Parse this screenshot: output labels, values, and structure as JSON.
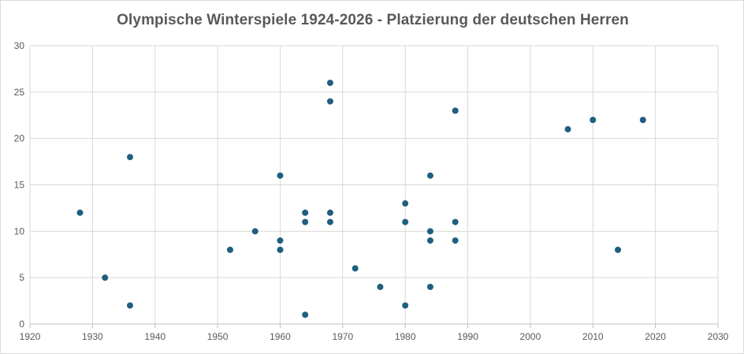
{
  "chart_data": {
    "type": "scatter",
    "title": "Olympische Winterspiele 1924-2026 - Platzierung der deutschen Herren",
    "xlabel": "",
    "ylabel": "",
    "xlim": [
      1920,
      2030
    ],
    "ylim": [
      0,
      30
    ],
    "x_ticks": [
      1920,
      1930,
      1940,
      1950,
      1960,
      1970,
      1980,
      1990,
      2000,
      2010,
      2020,
      2030
    ],
    "y_ticks": [
      0,
      5,
      10,
      15,
      20,
      25,
      30
    ],
    "x_tick_labels": [
      "1920",
      "1930",
      "1940",
      "1950",
      "1960",
      "1970",
      "1980",
      "1990",
      "2000",
      "2010",
      "2020",
      "2030"
    ],
    "y_tick_labels": [
      "0",
      "5",
      "10",
      "15",
      "20",
      "25",
      "30"
    ],
    "grid": true,
    "legend": "none",
    "marker_color": "#1f5f7f",
    "grid_color": "#d9d9d9",
    "axis_color": "#bfbfbf",
    "points": [
      {
        "x": 1928,
        "y": 12
      },
      {
        "x": 1932,
        "y": 5
      },
      {
        "x": 1936,
        "y": 18
      },
      {
        "x": 1936,
        "y": 2
      },
      {
        "x": 1952,
        "y": 8
      },
      {
        "x": 1956,
        "y": 10
      },
      {
        "x": 1960,
        "y": 16
      },
      {
        "x": 1960,
        "y": 9
      },
      {
        "x": 1960,
        "y": 8
      },
      {
        "x": 1964,
        "y": 12
      },
      {
        "x": 1964,
        "y": 11
      },
      {
        "x": 1964,
        "y": 1
      },
      {
        "x": 1968,
        "y": 26
      },
      {
        "x": 1968,
        "y": 24
      },
      {
        "x": 1968,
        "y": 12
      },
      {
        "x": 1968,
        "y": 11
      },
      {
        "x": 1972,
        "y": 6
      },
      {
        "x": 1976,
        "y": 4
      },
      {
        "x": 1980,
        "y": 13
      },
      {
        "x": 1980,
        "y": 11
      },
      {
        "x": 1980,
        "y": 2
      },
      {
        "x": 1984,
        "y": 16
      },
      {
        "x": 1984,
        "y": 10
      },
      {
        "x": 1984,
        "y": 9
      },
      {
        "x": 1984,
        "y": 4
      },
      {
        "x": 1988,
        "y": 23
      },
      {
        "x": 1988,
        "y": 11
      },
      {
        "x": 1988,
        "y": 9
      },
      {
        "x": 2006,
        "y": 21
      },
      {
        "x": 2010,
        "y": 22
      },
      {
        "x": 2014,
        "y": 8
      },
      {
        "x": 2018,
        "y": 22
      }
    ]
  }
}
